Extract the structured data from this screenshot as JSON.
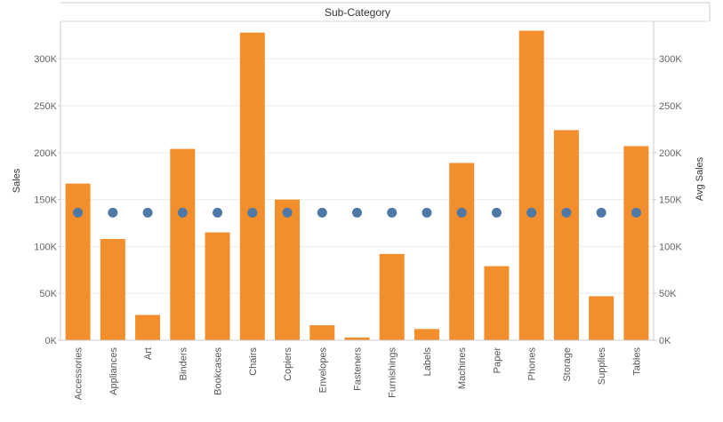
{
  "header": {
    "title": "Sub-Category"
  },
  "colors": {
    "bar": "#F28E2B",
    "dot": "#4E79A7",
    "grid": "#EBEBEB",
    "axis": "#CCCCCC",
    "text": "#666666"
  },
  "chart_data": {
    "type": "bar",
    "title": "",
    "column_header": "Sub-Category",
    "xlabel": "",
    "ylabel": "Sales",
    "y2label": "Avg Sales",
    "ylim": [
      0,
      340000
    ],
    "y2lim": [
      0,
      340000
    ],
    "yticks": [
      0,
      50000,
      100000,
      150000,
      200000,
      250000,
      300000
    ],
    "ytick_labels": [
      "0K",
      "50K",
      "100K",
      "150K",
      "200K",
      "250K",
      "300K"
    ],
    "grid": true,
    "legend": "none",
    "categories": [
      "Accessories",
      "Appliances",
      "Art",
      "Binders",
      "Bookcases",
      "Chairs",
      "Copiers",
      "Envelopes",
      "Fasteners",
      "Furnishings",
      "Labels",
      "Machines",
      "Paper",
      "Phones",
      "Storage",
      "Supplies",
      "Tables"
    ],
    "series": [
      {
        "type": "bar",
        "axis": "left",
        "color": "#F28E2B",
        "values": [
          167000,
          108000,
          27000,
          204000,
          115000,
          328000,
          150000,
          16000,
          3000,
          92000,
          12000,
          189000,
          79000,
          330000,
          224000,
          47000,
          207000
        ]
      },
      {
        "type": "scatter",
        "axis": "right",
        "color": "#4E79A7",
        "values": [
          136000,
          136000,
          136000,
          136000,
          136000,
          136000,
          136000,
          136000,
          136000,
          136000,
          136000,
          136000,
          136000,
          136000,
          136000,
          136000,
          136000
        ]
      }
    ]
  }
}
